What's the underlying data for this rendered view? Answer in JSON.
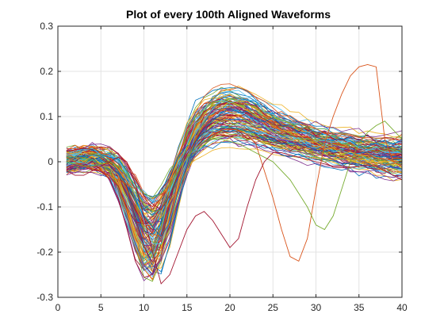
{
  "chart_data": {
    "type": "line",
    "title": "Plot of every 100th Aligned Waveforms",
    "xlabel": "",
    "ylabel": "",
    "xlim": [
      0,
      40
    ],
    "ylim": [
      -0.3,
      0.3
    ],
    "xticks": [
      0,
      5,
      10,
      15,
      20,
      25,
      30,
      35,
      40
    ],
    "yticks": [
      -0.3,
      -0.2,
      -0.1,
      0,
      0.1,
      0.2,
      0.3
    ],
    "grid": true,
    "legend": "none",
    "num_series": 120,
    "sample_count": 40,
    "colors": [
      "#0072BD",
      "#D95319",
      "#EDB120",
      "#7E2F8E",
      "#77AC30",
      "#4DBEEE",
      "#A2142F"
    ],
    "template_waveform": {
      "x": [
        1,
        2,
        3,
        4,
        5,
        6,
        7,
        8,
        9,
        10,
        11,
        12,
        13,
        14,
        15,
        16,
        17,
        18,
        19,
        20,
        21,
        22,
        23,
        24,
        25,
        26,
        27,
        28,
        29,
        30,
        31,
        32,
        33,
        34,
        35,
        36,
        37,
        38,
        39,
        40
      ],
      "y": [
        0.0,
        0.005,
        0.01,
        0.01,
        0.005,
        -0.005,
        -0.025,
        -0.07,
        -0.13,
        -0.18,
        -0.2,
        -0.17,
        -0.1,
        -0.03,
        0.03,
        0.07,
        0.095,
        0.11,
        0.118,
        0.12,
        0.118,
        0.11,
        0.1,
        0.09,
        0.08,
        0.072,
        0.065,
        0.058,
        0.05,
        0.044,
        0.038,
        0.033,
        0.028,
        0.024,
        0.02,
        0.017,
        0.014,
        0.011,
        0.009,
        0.007
      ]
    },
    "outliers": [
      {
        "color": "#D95319",
        "x": [
          1,
          2,
          3,
          4,
          5,
          6,
          7,
          8,
          9,
          10,
          11,
          12,
          13,
          14,
          15,
          16,
          17,
          18,
          19,
          20,
          21,
          22,
          23,
          24,
          25,
          26,
          27,
          28,
          29,
          30,
          31,
          32,
          33,
          34,
          35,
          36,
          37,
          38,
          39,
          40
        ],
        "y": [
          0.01,
          0.0,
          -0.01,
          -0.015,
          -0.02,
          -0.03,
          -0.04,
          -0.05,
          -0.06,
          -0.08,
          -0.1,
          -0.08,
          -0.05,
          -0.02,
          0.01,
          0.03,
          0.045,
          0.06,
          0.07,
          0.072,
          0.07,
          0.06,
          0.04,
          -0.02,
          -0.08,
          -0.15,
          -0.21,
          -0.22,
          -0.17,
          -0.06,
          0.04,
          0.1,
          0.15,
          0.19,
          0.21,
          0.215,
          0.21,
          0.05,
          0.0,
          -0.01
        ]
      },
      {
        "color": "#77AC30",
        "x": [
          1,
          2,
          3,
          4,
          5,
          6,
          7,
          8,
          9,
          10,
          11,
          12,
          13,
          14,
          15,
          16,
          17,
          18,
          19,
          20,
          21,
          22,
          23,
          24,
          25,
          26,
          27,
          28,
          29,
          30,
          31,
          32,
          33,
          34,
          35,
          36,
          37,
          38,
          39,
          40
        ],
        "y": [
          0.0,
          -0.005,
          -0.01,
          -0.01,
          -0.005,
          0.0,
          -0.01,
          -0.03,
          -0.05,
          -0.07,
          -0.08,
          -0.07,
          -0.05,
          -0.02,
          0.01,
          0.03,
          0.045,
          0.05,
          0.05,
          0.045,
          0.04,
          0.03,
          0.02,
          0.01,
          0.0,
          -0.02,
          -0.04,
          -0.07,
          -0.1,
          -0.14,
          -0.15,
          -0.12,
          -0.06,
          0.0,
          0.04,
          0.065,
          0.08,
          0.09,
          0.07,
          0.05
        ]
      },
      {
        "color": "#A2142F",
        "x": [
          1,
          2,
          3,
          4,
          5,
          6,
          7,
          8,
          9,
          10,
          11,
          12,
          13,
          14,
          15,
          16,
          17,
          18,
          19,
          20,
          21,
          22,
          23,
          24,
          25,
          26,
          27,
          28,
          29,
          30,
          31,
          32,
          33,
          34,
          35,
          36,
          37,
          38,
          39,
          40
        ],
        "y": [
          -0.02,
          -0.03,
          -0.03,
          -0.02,
          -0.01,
          0.0,
          0.01,
          0.0,
          -0.05,
          -0.12,
          -0.2,
          -0.27,
          -0.25,
          -0.2,
          -0.15,
          -0.12,
          -0.11,
          -0.13,
          -0.16,
          -0.19,
          -0.17,
          -0.1,
          -0.04,
          0.0,
          0.02,
          0.02,
          0.015,
          0.01,
          0.005,
          0.0,
          -0.005,
          -0.01,
          -0.01,
          -0.012,
          -0.01,
          -0.008,
          -0.01,
          -0.02,
          -0.03,
          -0.04
        ]
      }
    ]
  }
}
